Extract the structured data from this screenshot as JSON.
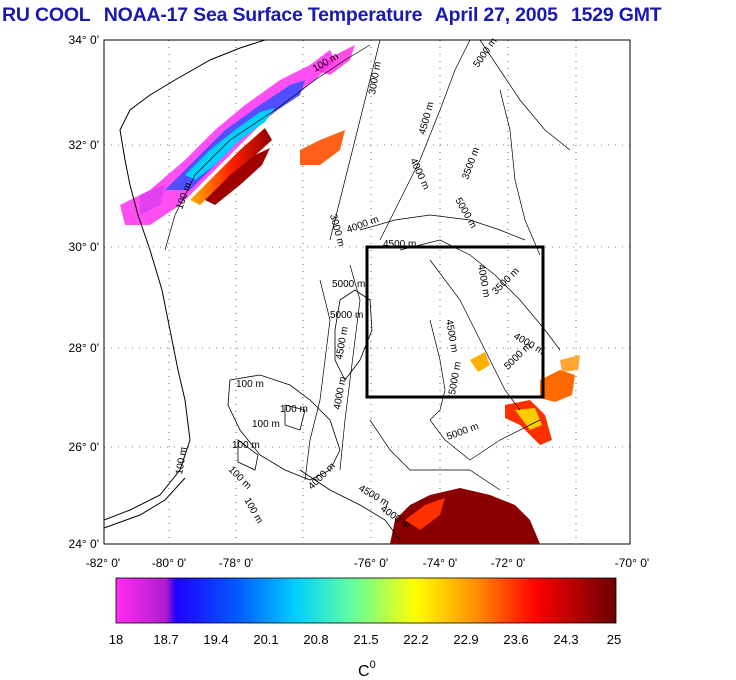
{
  "title": {
    "group": "RU COOL",
    "product": "NOAA-17 Sea Surface Temperature",
    "date": "April 27, 2005",
    "time": "1529 GMT"
  },
  "map": {
    "lat_ticks": [
      "34° 0'",
      "32° 0'",
      "30° 0'",
      "28° 0'",
      "26° 0'",
      "24° 0'"
    ],
    "lon_ticks": [
      "-82° 0'",
      "-80° 0'",
      "-78° 0'",
      "-76° 0'",
      "-74° 0'",
      "-72° 0'",
      "-70° 0'"
    ],
    "bounds": {
      "lat_min": 24,
      "lat_max": 34,
      "lon_min": -82,
      "lon_max": -70
    },
    "study_box": {
      "lon_min": -76,
      "lon_max": -72,
      "lat_min": 27,
      "lat_max": 30
    },
    "contour_labels": [
      "100 m",
      "100 m",
      "3000 m",
      "5000 m",
      "4500 m",
      "4000 m",
      "5000 m",
      "3000 m",
      "4000 m",
      "4500 m",
      "5000 m",
      "3500 m",
      "4000 m",
      "5000 m",
      "4500 m",
      "4000 m",
      "5000 m",
      "5000 m",
      "3500 m",
      "4500 m",
      "100 m",
      "100 m",
      "100 m",
      "100 m",
      "100 m",
      "4000 m",
      "5000 m",
      "4500 m",
      "4000 m",
      "4000 m",
      "100 m",
      "100 m"
    ]
  },
  "colorbar": {
    "min": 18,
    "max": 25,
    "tick_labels": [
      "18",
      "18.7",
      "19.4",
      "20.1",
      "20.8",
      "21.5",
      "22.2",
      "22.9",
      "23.6",
      "24.3",
      "25"
    ],
    "unit_label": "C",
    "unit_sup": "0",
    "colors": [
      "#ff1cf0",
      "#0000ff",
      "#00c8ff",
      "#7cff7c",
      "#ffff00",
      "#ff8000",
      "#ff0000",
      "#7a0000"
    ]
  }
}
